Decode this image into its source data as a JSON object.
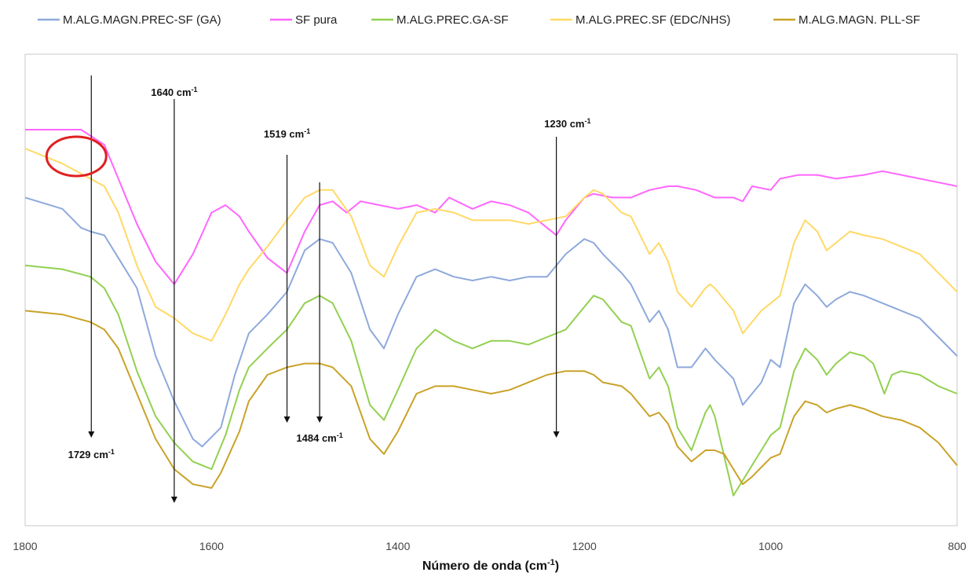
{
  "chart_data": {
    "type": "line",
    "title": "",
    "xlabel": "Número de onda (cm",
    "xlabel_sup": "-1",
    "xlabel_end": ")",
    "xlim": [
      1800,
      800
    ],
    "x_reversed": true,
    "y_axis_shown": false,
    "grid": false,
    "legend_position": "top",
    "x_ticks": [
      1800,
      1600,
      1400,
      1200,
      1000,
      800
    ],
    "x_tick_labels": [
      "1800",
      "1600",
      "1400",
      "1200",
      "1000",
      "800"
    ],
    "series": [
      {
        "name": "M.ALG.MAGN.PREC-SF (GA)",
        "color": "#8EA9DB",
        "x": [
          1800,
          1760,
          1740,
          1730,
          1715,
          1700,
          1680,
          1660,
          1640,
          1620,
          1610,
          1590,
          1575,
          1560,
          1540,
          1519,
          1500,
          1484,
          1470,
          1450,
          1430,
          1415,
          1400,
          1380,
          1360,
          1340,
          1320,
          1300,
          1280,
          1260,
          1240,
          1220,
          1200,
          1190,
          1180,
          1160,
          1150,
          1130,
          1120,
          1110,
          1100,
          1085,
          1070,
          1060,
          1040,
          1030,
          1010,
          1000,
          990,
          975,
          963,
          950,
          940,
          930,
          915,
          900,
          880,
          860,
          840,
          820,
          800
        ],
        "y": [
          28.8,
          27.6,
          25.6,
          25.2,
          24.8,
          22.4,
          19.2,
          12.0,
          7.2,
          3.2,
          2.4,
          4.4,
          10.0,
          14.4,
          16.4,
          18.8,
          23.2,
          24.4,
          24.0,
          20.8,
          14.8,
          12.8,
          16.4,
          20.4,
          21.2,
          20.4,
          20.0,
          20.4,
          20.0,
          20.4,
          20.4,
          22.8,
          24.4,
          24.0,
          22.8,
          20.8,
          19.6,
          15.6,
          16.8,
          14.8,
          10.8,
          10.8,
          12.8,
          11.6,
          9.6,
          6.8,
          9.2,
          11.6,
          10.8,
          17.6,
          19.6,
          18.4,
          17.2,
          18.0,
          18.8,
          18.4,
          17.6,
          16.8,
          16.0,
          14.0,
          12.0
        ]
      },
      {
        "name": "SF pura",
        "color": "#FF66FF",
        "x": [
          1800,
          1740,
          1715,
          1700,
          1680,
          1660,
          1640,
          1620,
          1600,
          1585,
          1570,
          1560,
          1540,
          1519,
          1500,
          1484,
          1470,
          1455,
          1440,
          1420,
          1400,
          1380,
          1360,
          1345,
          1320,
          1300,
          1280,
          1260,
          1240,
          1230,
          1220,
          1200,
          1190,
          1170,
          1150,
          1130,
          1110,
          1100,
          1080,
          1060,
          1040,
          1030,
          1020,
          1000,
          990,
          970,
          950,
          930,
          900,
          880,
          860,
          840,
          820,
          800
        ],
        "y": [
          36.0,
          36.0,
          34.4,
          30.8,
          26.0,
          22.0,
          19.6,
          22.8,
          27.2,
          28.0,
          26.8,
          25.2,
          22.4,
          20.8,
          25.2,
          28.0,
          28.4,
          27.2,
          28.4,
          28.0,
          27.6,
          28.0,
          27.2,
          28.8,
          27.6,
          28.4,
          28.0,
          27.2,
          25.6,
          24.8,
          26.4,
          28.8,
          29.2,
          28.8,
          28.8,
          29.6,
          30.0,
          30.0,
          29.6,
          28.8,
          28.8,
          28.4,
          30.0,
          29.6,
          30.8,
          31.2,
          31.2,
          30.8,
          31.2,
          31.6,
          31.2,
          30.8,
          30.4,
          30.0
        ]
      },
      {
        "name": "M.ALG.PREC.GA-SF",
        "color": "#92D050",
        "x": [
          1800,
          1760,
          1730,
          1715,
          1700,
          1680,
          1660,
          1640,
          1620,
          1600,
          1585,
          1570,
          1560,
          1540,
          1519,
          1500,
          1484,
          1470,
          1450,
          1430,
          1415,
          1400,
          1380,
          1360,
          1340,
          1320,
          1300,
          1280,
          1260,
          1240,
          1220,
          1200,
          1190,
          1180,
          1160,
          1150,
          1130,
          1120,
          1110,
          1100,
          1085,
          1070,
          1065,
          1060,
          1040,
          1030,
          1010,
          1000,
          990,
          975,
          963,
          950,
          940,
          930,
          915,
          900,
          890,
          878,
          870,
          860,
          840,
          820,
          800
        ],
        "y": [
          21.6,
          21.2,
          20.4,
          19.2,
          16.4,
          10.4,
          5.6,
          2.8,
          0.8,
          0.0,
          3.6,
          8.4,
          10.8,
          12.8,
          14.8,
          17.6,
          18.4,
          17.6,
          13.6,
          6.8,
          5.2,
          8.4,
          12.8,
          14.8,
          13.6,
          12.8,
          13.6,
          13.6,
          13.2,
          14.0,
          14.8,
          17.2,
          18.4,
          18.0,
          15.6,
          15.2,
          9.6,
          10.8,
          8.8,
          4.4,
          2.0,
          6.0,
          6.8,
          5.6,
          -2.8,
          -1.2,
          2.0,
          3.6,
          4.4,
          10.4,
          12.8,
          11.6,
          10.0,
          11.2,
          12.4,
          12.0,
          11.2,
          8.0,
          10.0,
          10.4,
          10.0,
          8.8,
          8.0
        ]
      },
      {
        "name": "M.ALG.PREC.SF (EDC/NHS)",
        "color": "#FFD966",
        "x": [
          1800,
          1760,
          1730,
          1715,
          1700,
          1680,
          1660,
          1640,
          1620,
          1600,
          1585,
          1570,
          1560,
          1540,
          1519,
          1500,
          1484,
          1470,
          1450,
          1430,
          1415,
          1400,
          1380,
          1360,
          1340,
          1320,
          1300,
          1280,
          1260,
          1240,
          1220,
          1200,
          1190,
          1180,
          1160,
          1150,
          1130,
          1120,
          1110,
          1100,
          1085,
          1070,
          1065,
          1060,
          1040,
          1030,
          1010,
          1000,
          990,
          975,
          963,
          950,
          940,
          930,
          915,
          900,
          880,
          860,
          840,
          820,
          800
        ],
        "y": [
          34.0,
          32.4,
          30.8,
          30.0,
          27.2,
          21.6,
          17.2,
          16.0,
          14.4,
          13.6,
          16.4,
          19.6,
          21.2,
          23.6,
          26.4,
          28.8,
          29.6,
          29.6,
          26.8,
          21.6,
          20.4,
          23.6,
          27.2,
          27.6,
          27.2,
          26.4,
          26.4,
          26.4,
          26.0,
          26.4,
          26.8,
          28.8,
          29.6,
          29.2,
          27.2,
          26.8,
          22.8,
          24.0,
          22.0,
          18.8,
          17.2,
          19.2,
          19.6,
          19.2,
          16.8,
          14.4,
          16.8,
          17.6,
          18.4,
          24.0,
          26.4,
          25.2,
          23.2,
          24.0,
          25.2,
          24.8,
          24.4,
          23.6,
          22.8,
          20.8,
          18.8
        ]
      },
      {
        "name": "M.ALG.MAGN. PLL-SF",
        "color": "#C9A227",
        "x": [
          1800,
          1760,
          1730,
          1715,
          1700,
          1680,
          1660,
          1640,
          1620,
          1600,
          1590,
          1570,
          1560,
          1540,
          1519,
          1500,
          1484,
          1470,
          1450,
          1430,
          1415,
          1400,
          1380,
          1360,
          1340,
          1320,
          1300,
          1280,
          1260,
          1240,
          1220,
          1200,
          1190,
          1180,
          1160,
          1150,
          1130,
          1120,
          1110,
          1100,
          1085,
          1070,
          1060,
          1050,
          1040,
          1030,
          1020,
          1000,
          990,
          975,
          963,
          950,
          940,
          930,
          915,
          900,
          880,
          860,
          840,
          820,
          800
        ],
        "y": [
          16.8,
          16.4,
          15.6,
          14.8,
          12.8,
          8.0,
          3.2,
          0.0,
          -1.6,
          -2.0,
          -0.4,
          4.0,
          7.2,
          10.0,
          10.8,
          11.2,
          11.2,
          10.8,
          8.8,
          3.2,
          1.6,
          4.0,
          8.0,
          8.8,
          8.8,
          8.4,
          8.0,
          8.4,
          9.2,
          10.0,
          10.4,
          10.4,
          10.0,
          9.2,
          8.8,
          8.0,
          5.6,
          6.0,
          4.8,
          2.4,
          0.8,
          2.0,
          2.0,
          1.6,
          0.0,
          -1.6,
          -0.8,
          1.2,
          1.6,
          5.6,
          7.2,
          6.8,
          6.0,
          6.4,
          6.8,
          6.4,
          5.6,
          5.2,
          4.4,
          2.8,
          0.4
        ]
      }
    ],
    "annotations": [
      {
        "label": "1729 cm",
        "sup": "-1",
        "x": 1729
      },
      {
        "label": "1640 cm",
        "sup": "-1",
        "x": 1640
      },
      {
        "label": "1519 cm",
        "sup": "-1",
        "x": 1519
      },
      {
        "label": "1484 cm",
        "sup": "-1",
        "x": 1484
      },
      {
        "label": "1230 cm",
        "sup": "-1",
        "x": 1230
      }
    ],
    "highlight": {
      "shape": "ellipse",
      "color": "#E02020",
      "x": 1745
    }
  }
}
